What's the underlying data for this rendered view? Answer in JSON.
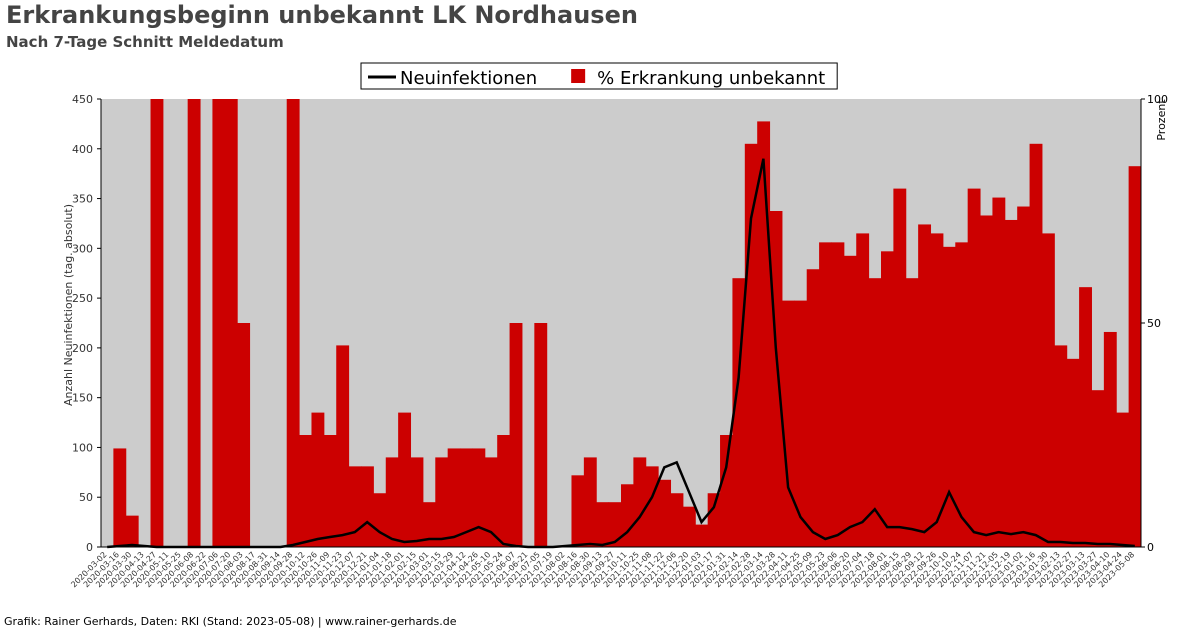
{
  "chart_data": {
    "type": "bar-line",
    "title": "Erkrankungsbeginn unbekannt LK Nordhausen",
    "subtitle": "Nach 7-Tage Schnitt Meldedatum",
    "y_label": "Anzahl Neuinfektionen (tag. absolut)",
    "y2_label": "Prozent",
    "footer": "Grafik: Rainer Gerhards, Daten: RKI (Stand: 2023-05-08) | www.rainer-gerhards.de",
    "x": [
      "2020-03-02",
      "2020-03-16",
      "2020-03-30",
      "2020-04-13",
      "2020-04-27",
      "2020-05-11",
      "2020-05-25",
      "2020-06-08",
      "2020-06-22",
      "2020-07-06",
      "2020-07-20",
      "2020-08-03",
      "2020-08-17",
      "2020-08-31",
      "2020-09-14",
      "2020-09-28",
      "2020-10-12",
      "2020-10-26",
      "2020-11-09",
      "2020-11-23",
      "2020-12-07",
      "2020-12-21",
      "2021-01-04",
      "2021-01-18",
      "2021-02-01",
      "2021-02-15",
      "2021-03-01",
      "2021-03-15",
      "2021-03-29",
      "2021-04-12",
      "2021-04-26",
      "2021-05-10",
      "2021-05-24",
      "2021-06-07",
      "2021-06-21",
      "2021-07-05",
      "2021-07-19",
      "2021-08-02",
      "2021-08-16",
      "2021-08-30",
      "2021-09-13",
      "2021-09-27",
      "2021-10-11",
      "2021-10-25",
      "2021-11-08",
      "2021-11-22",
      "2021-12-06",
      "2021-12-20",
      "2022-01-03",
      "2022-01-17",
      "2022-01-31",
      "2022-02-14",
      "2022-02-28",
      "2022-03-14",
      "2022-03-28",
      "2022-04-11",
      "2022-04-25",
      "2022-05-09",
      "2022-05-23",
      "2022-06-06",
      "2022-06-20",
      "2022-07-04",
      "2022-07-18",
      "2022-08-01",
      "2022-08-15",
      "2022-08-29",
      "2022-09-12",
      "2022-09-26",
      "2022-10-10",
      "2022-10-24",
      "2022-11-07",
      "2022-11-21",
      "2022-12-05",
      "2022-12-19",
      "2023-01-02",
      "2023-01-16",
      "2023-01-30",
      "2023-02-13",
      "2023-02-27",
      "2023-03-13",
      "2023-03-27",
      "2023-04-10",
      "2023-04-24",
      "2023-05-08"
    ],
    "series": [
      {
        "name": "% Erkrankung unbekannt",
        "color": "#cc0000",
        "axis": "y2",
        "kind": "bar",
        "values": [
          0,
          22,
          7,
          0,
          100,
          0,
          0,
          100,
          0,
          100,
          100,
          50,
          0,
          0,
          0,
          100,
          25,
          30,
          25,
          45,
          18,
          18,
          12,
          20,
          30,
          20,
          10,
          20,
          22,
          22,
          22,
          20,
          25,
          50,
          0,
          50,
          0,
          0,
          16,
          20,
          10,
          10,
          14,
          20,
          18,
          15,
          12,
          9,
          5,
          12,
          25,
          60,
          90,
          95,
          75,
          55,
          55,
          62,
          68,
          68,
          65,
          70,
          60,
          66,
          80,
          60,
          72,
          70,
          67,
          68,
          80,
          74,
          78,
          73,
          76,
          90,
          70,
          45,
          42,
          58,
          35,
          48,
          30,
          85
        ]
      },
      {
        "name": "Neuinfektionen",
        "color": "#000000",
        "axis": "y",
        "kind": "line",
        "values": [
          0,
          1,
          2,
          1,
          0,
          0,
          0,
          0,
          0,
          0,
          0,
          0,
          0,
          0,
          0,
          2,
          5,
          8,
          10,
          12,
          15,
          25,
          15,
          8,
          5,
          6,
          8,
          8,
          10,
          15,
          20,
          15,
          3,
          1,
          0,
          0,
          0,
          1,
          2,
          3,
          2,
          5,
          15,
          30,
          50,
          80,
          85,
          55,
          25,
          40,
          80,
          170,
          330,
          390,
          200,
          60,
          30,
          15,
          8,
          12,
          20,
          25,
          38,
          20,
          20,
          18,
          15,
          25,
          55,
          30,
          15,
          12,
          15,
          13,
          15,
          12,
          5,
          5,
          4,
          4,
          3,
          3,
          2,
          1
        ]
      }
    ],
    "ylim": [
      0,
      450
    ],
    "yticks": [
      0,
      50,
      100,
      150,
      200,
      250,
      300,
      350,
      400,
      450
    ],
    "y2lim": [
      0,
      100
    ],
    "y2ticks": [
      0,
      50,
      100
    ],
    "background": "#cccccc"
  }
}
